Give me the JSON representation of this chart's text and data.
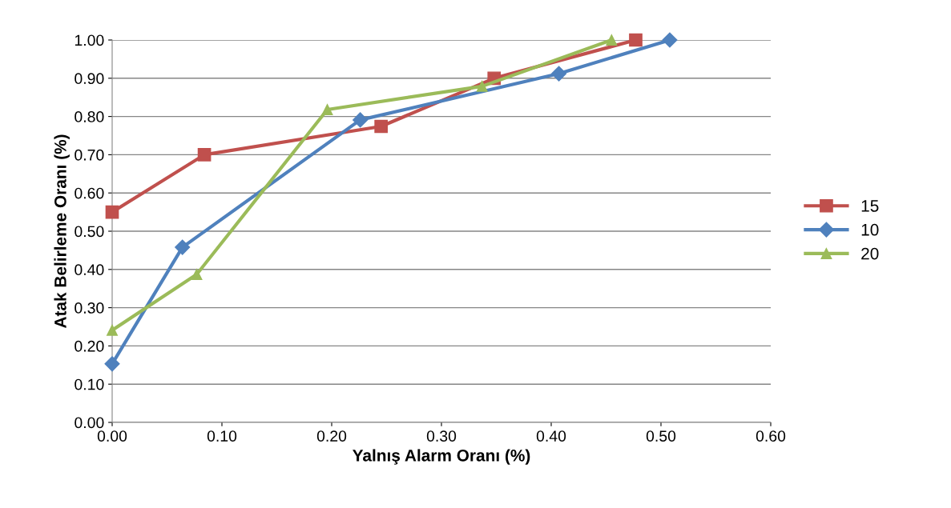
{
  "chart_data": {
    "type": "line",
    "xlabel": "Yalnış Alarm Oranı (%)",
    "ylabel": "Atak Belirleme Oranı (%)",
    "xlim": [
      0,
      0.6
    ],
    "xticks": [
      {
        "value": 0,
        "label": "0.00"
      },
      {
        "value": 0.1,
        "label": "0.10"
      },
      {
        "value": 0.2,
        "label": "0.20"
      },
      {
        "value": 0.3,
        "label": "0.30"
      },
      {
        "value": 0.4,
        "label": "0.40"
      },
      {
        "value": 0.5,
        "label": "0.50"
      },
      {
        "value": 0.6,
        "label": "0.60"
      }
    ],
    "ylim": [
      0,
      1
    ],
    "yticks": [
      {
        "value": 0,
        "label": "0.00"
      },
      {
        "value": 0.1,
        "label": "0.10"
      },
      {
        "value": 0.2,
        "label": "0.20"
      },
      {
        "value": 0.3,
        "label": "0.30"
      },
      {
        "value": 0.4,
        "label": "0.40"
      },
      {
        "value": 0.5,
        "label": "0.50"
      },
      {
        "value": 0.6,
        "label": "0.60"
      },
      {
        "value": 0.7,
        "label": "0.70"
      },
      {
        "value": 0.8,
        "label": "0.80"
      },
      {
        "value": 0.9,
        "label": "0.90"
      },
      {
        "value": 1.0,
        "label": "1.00"
      }
    ],
    "grid": "y",
    "legend": "right",
    "line_style": "solid",
    "series": [
      {
        "name": "15",
        "color": "#c0504d",
        "marker": "square",
        "x": [
          0,
          0.084,
          0.245,
          0.348,
          0.477
        ],
        "values": [
          0.55,
          0.7,
          0.774,
          0.9,
          1.0
        ]
      },
      {
        "name": "10",
        "color": "#4f81bd",
        "marker": "diamond",
        "x": [
          0,
          0.064,
          0.226,
          0.407,
          0.508
        ],
        "values": [
          0.153,
          0.458,
          0.791,
          0.912,
          1.0
        ]
      },
      {
        "name": "20",
        "color": "#9bbb59",
        "marker": "triangle",
        "x": [
          0,
          0.077,
          0.196,
          0.337,
          0.455
        ],
        "values": [
          0.241,
          0.387,
          0.818,
          0.879,
          1.0
        ]
      }
    ]
  }
}
